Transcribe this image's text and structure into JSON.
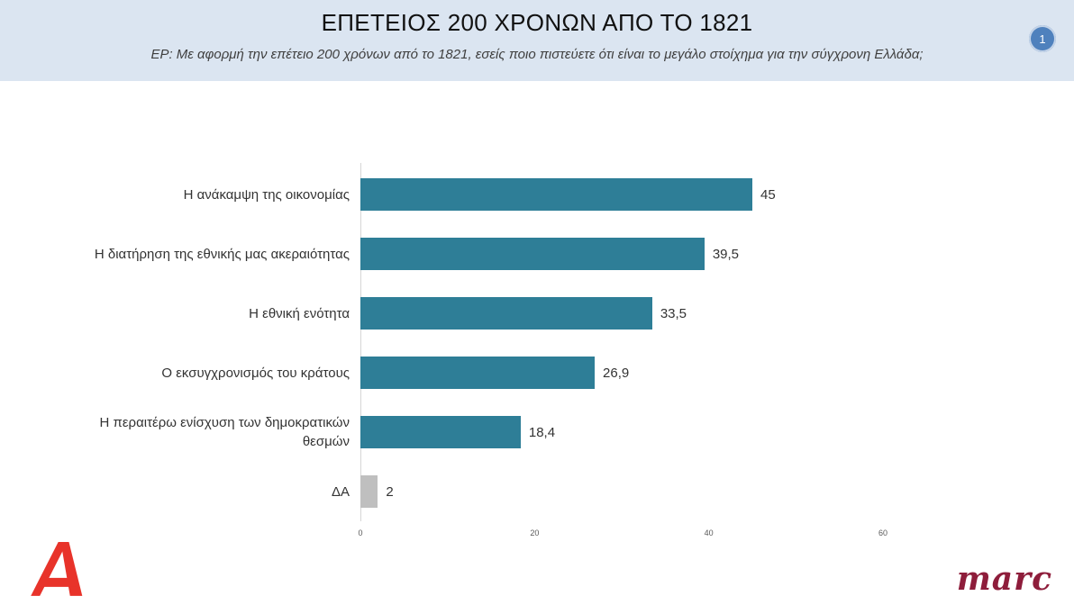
{
  "header": {
    "title": "ΕΠΕΤΕΙΟΣ 200 ΧΡΟΝΩΝ ΑΠΟ ΤΟ 1821",
    "subtitle": "ΕΡ:  Με αφορμή την επέτειο 200 χρόνων από το 1821, εσείς ποιο πιστεύετε ότι είναι το μεγάλο στοίχημα για την σύγχρονη Ελλάδα;",
    "page_number": "1"
  },
  "chart_data": {
    "type": "bar",
    "orientation": "horizontal",
    "categories": [
      "Η ανάκαμψη της οικονομίας",
      "Η διατήρηση της εθνικής μας ακεραιότητας",
      "Η εθνική ενότητα",
      "Ο εκσυγχρονισμός του κράτους",
      "Η περαιτέρω ενίσχυση των δημοκρατικών θεσμών",
      "ΔΑ"
    ],
    "values": [
      45,
      39.5,
      33.5,
      26.9,
      18.4,
      2
    ],
    "value_labels": [
      "45",
      "39,5",
      "33,5",
      "26,9",
      "18,4",
      "2"
    ],
    "title": "ΕΠΕΤΕΙΟΣ 200 ΧΡΟΝΩΝ ΑΠΟ ΤΟ 1821",
    "xlabel": "",
    "ylabel": "",
    "xlim": [
      0,
      60
    ],
    "xticks": [
      0,
      20,
      40,
      60
    ],
    "grid": false,
    "legend": false,
    "bar_color": "#2e7e97",
    "last_bar_color": "#bfbfbf"
  },
  "footer": {
    "alpha_logo_name": "alpha-tv-logo",
    "marc_logo_text": "marc"
  },
  "colors": {
    "header_bg": "#dbe5f1",
    "badge_bg": "#4f81bd",
    "bar_teal": "#2e7e97",
    "bar_gray": "#bfbfbf",
    "alpha_red": "#e8332a",
    "marc_red": "#8e1d3b"
  }
}
